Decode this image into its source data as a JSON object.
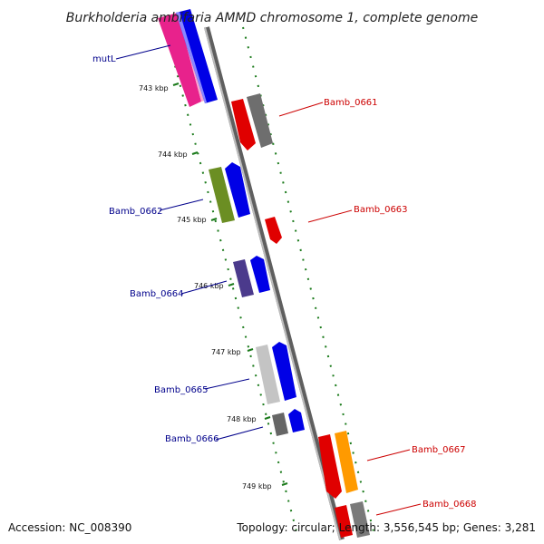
{
  "title": "Burkholderia ambifaria AMMD chromosome 1, complete genome",
  "accession": "Accession: NC_008390",
  "topology": "Topology: circular; Length: 3,556,545 bp; Genes: 3,281",
  "colors": {
    "backbone": "#8c8c8c",
    "tick": "#1a7a1a",
    "forward_label": "#00008b",
    "reverse_label": "#cc0000"
  },
  "ticks": [
    "743 kbp",
    "744 kbp",
    "745 kbp",
    "746 kbp",
    "747 kbp",
    "748 kbp",
    "749 kbp"
  ],
  "labels": {
    "mutL": "mutL",
    "Bamb_0661": "Bamb_0661",
    "Bamb_0662": "Bamb_0662",
    "Bamb_0663": "Bamb_0663",
    "Bamb_0664": "Bamb_0664",
    "Bamb_0665": "Bamb_0665",
    "Bamb_0666": "Bamb_0666",
    "Bamb_0667": "Bamb_0667",
    "Bamb_0668": "Bamb_0668"
  }
}
